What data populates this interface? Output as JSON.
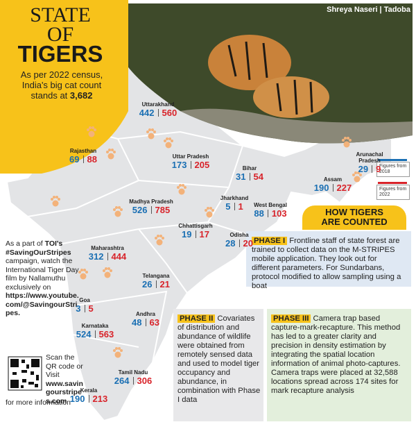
{
  "header": {
    "title_line1": "STATE",
    "title_line2": "OF",
    "title_line3": "TIGERS",
    "subtitle": "As per 2022 census, India's big cat count stands at",
    "count": "3,682",
    "credit": "Shreya Naseri | Tadoba"
  },
  "states": [
    {
      "name": "Uttarakhand",
      "y2018": 442,
      "y2022": 560
    },
    {
      "name": "Rajasthan",
      "y2018": 69,
      "y2022": 88
    },
    {
      "name": "Uttar Pradesh",
      "y2018": 173,
      "y2022": 205
    },
    {
      "name": "Bihar",
      "y2018": 31,
      "y2022": 54
    },
    {
      "name": "Arunachal Pradesh",
      "y2018": 29,
      "y2022": 9
    },
    {
      "name": "Assam",
      "y2018": 190,
      "y2022": 227
    },
    {
      "name": "Jharkhand",
      "y2018": 5,
      "y2022": 1
    },
    {
      "name": "West Bengal",
      "y2018": 88,
      "y2022": 103
    },
    {
      "name": "Madhya Pradesh",
      "y2018": 526,
      "y2022": 785
    },
    {
      "name": "Chhattisgarh",
      "y2018": 19,
      "y2022": 17
    },
    {
      "name": "Odisha",
      "y2018": 28,
      "y2022": 20
    },
    {
      "name": "Maharashtra",
      "y2018": 312,
      "y2022": 444
    },
    {
      "name": "Telangana",
      "y2018": 26,
      "y2022": 21
    },
    {
      "name": "Goa",
      "y2018": 3,
      "y2022": 5
    },
    {
      "name": "Andhra",
      "y2018": 48,
      "y2022": 63
    },
    {
      "name": "Karnataka",
      "y2018": 524,
      "y2022": 563
    },
    {
      "name": "Tamil Nadu",
      "y2018": 264,
      "y2022": 306
    },
    {
      "name": "Kerala",
      "y2018": 190,
      "y2022": 213
    }
  ],
  "legend": [
    "Figures from 2018",
    "Figures from 2022"
  ],
  "method": {
    "heading_line1": "HOW TIGERS",
    "heading_line2": "ARE COUNTED",
    "phases": [
      {
        "label": "PHASE I",
        "text": "Frontline staff of state forest are trained to collect data on the M-STRIPES mobile application. They look out for different parameters. For Sundarbans, protocol modified to allow sampling using a boat"
      },
      {
        "label": "PHASE II",
        "text": "Covariates of distribution and abundance of wildlife were obtained from remotely sensed data and used to model tiger occupancy and abundance, in combination with Phase I data"
      },
      {
        "label": "PHASE III",
        "text": "Camera trap based capture-mark-recapture. This method has led to a greater clarity and precision in density estimation by integrating the spatial location information of animal photo-captures. Camera traps were placed at 32,588 locations spread across 174 sites for mark recapture analysis"
      }
    ]
  },
  "sidebar": {
    "intro": "As a part of",
    "campaign": "TOI's #SavingOurStripes",
    "body": "campaign, watch the International Tiger Day film by Nallamuthu exclusively on",
    "link": "https://www.youtube.com/@SavingourStripes.",
    "scan": "Scan the QR code or Visit",
    "site": "www.savingourstripes.com",
    "more": "for more information"
  }
}
